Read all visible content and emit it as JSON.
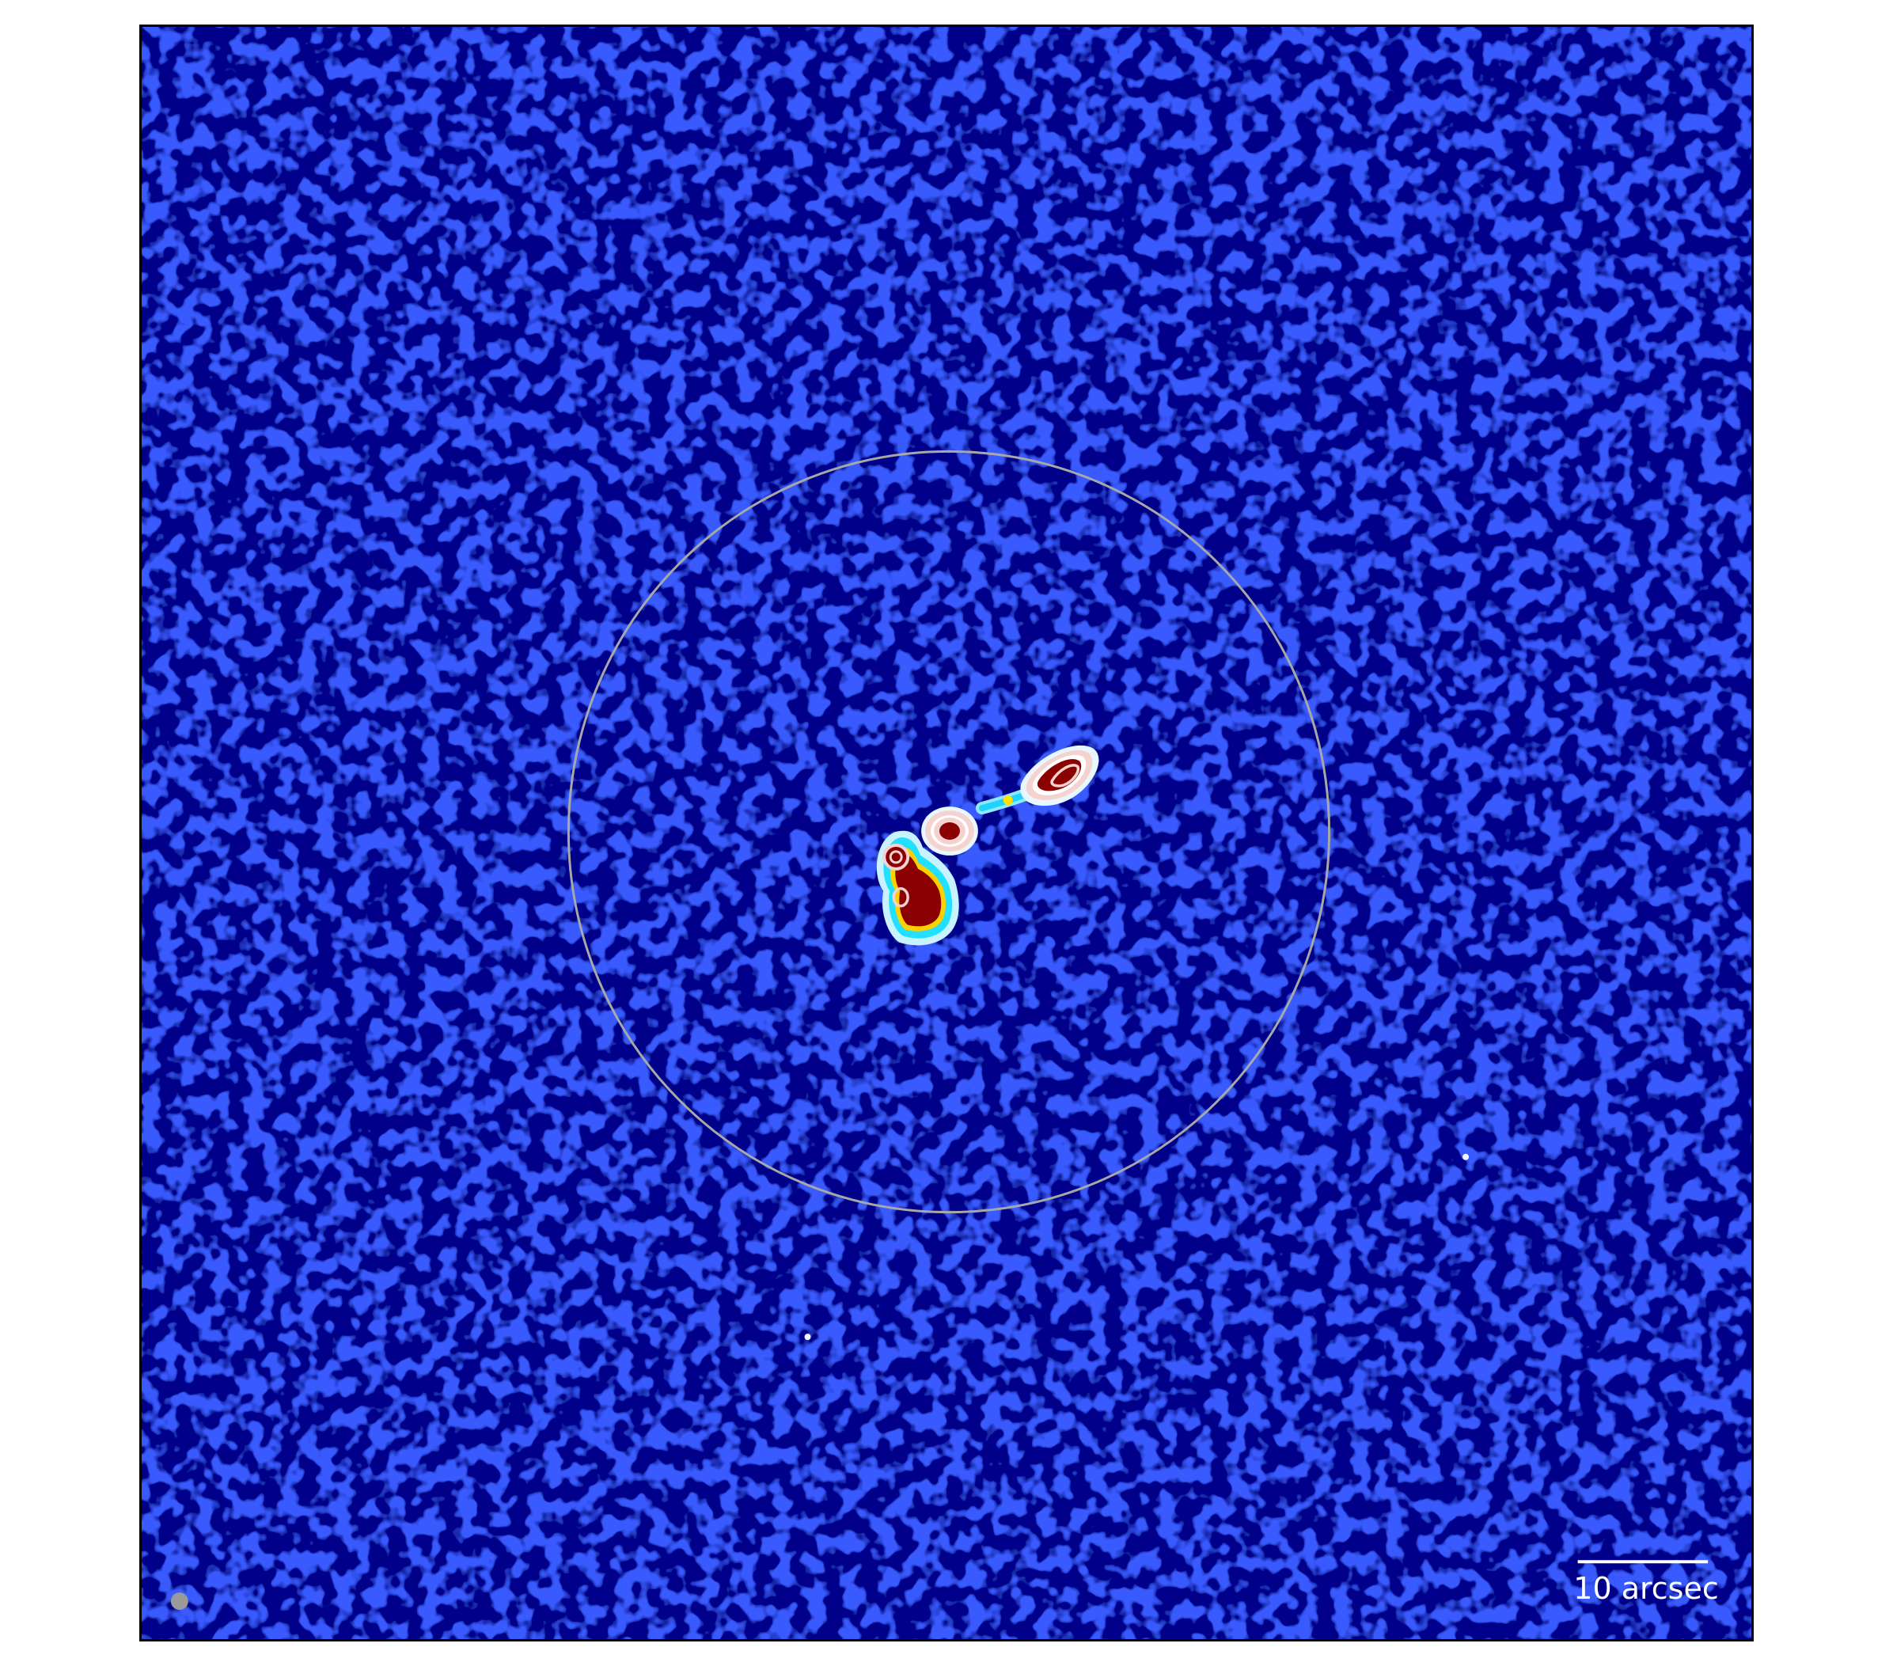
{
  "figure": {
    "scalebar": {
      "label": "10 arcsec"
    },
    "colors": {
      "background": "#00008b",
      "noise": "#0a1cff",
      "aperture_circle": "#a8a8a8",
      "source_core": "#8b0000",
      "contour": "#f4d2cf",
      "beam": "#9a9a9a",
      "frame": "#000000"
    },
    "colormap": "jet",
    "source": {
      "description_visible": false,
      "components": [
        "south-core-blob",
        "central-knot",
        "northeast-lobe"
      ]
    }
  }
}
